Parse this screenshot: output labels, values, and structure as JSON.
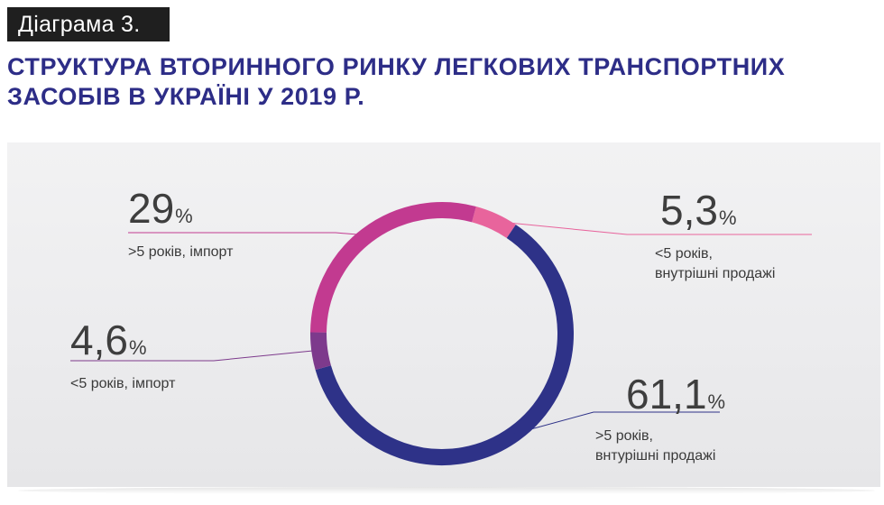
{
  "badge": "Діаграма 3.",
  "title": {
    "line1": "СТРУКТУРА ВТОРИННОГО РИНКУ ЛЕГКОВИХ ТРАНСПОРТНИХ",
    "line2": "ЗАСОБІВ В УКРАЇНІ У 2019 Р."
  },
  "colors": {
    "title": "#2d2d87",
    "badge_bg": "#1f1f1f"
  },
  "chart_data": {
    "type": "pie",
    "variant": "donut",
    "title": "СТРУКТУРА ВТОРИННОГО РИНКУ ЛЕГКОВИХ ТРАНСПОРТНИХ ЗАСОБІВ В УКРАЇНІ У 2019 Р.",
    "unit": "%",
    "legend": "none",
    "slices": [
      {
        "value": 5.3,
        "value_label": "5,3",
        "caption": [
          "<5 років,",
          "внутрішні продажі"
        ],
        "color": "#e8649c",
        "label_side": "right-top"
      },
      {
        "value": 61.1,
        "value_label": "61,1",
        "caption": [
          ">5 років,",
          "внтурішні продажі"
        ],
        "color": "#2e3288",
        "label_side": "right-bottom"
      },
      {
        "value": 4.6,
        "value_label": "4,6",
        "caption": [
          "<5 років, імпорт"
        ],
        "color": "#7d3a8c",
        "label_side": "left-bottom"
      },
      {
        "value": 29,
        "value_label": "29",
        "caption": [
          ">5 років, імпорт"
        ],
        "color": "#c23a90",
        "label_side": "left-top"
      }
    ],
    "start_position": "top, clockwise, pink segment first"
  }
}
